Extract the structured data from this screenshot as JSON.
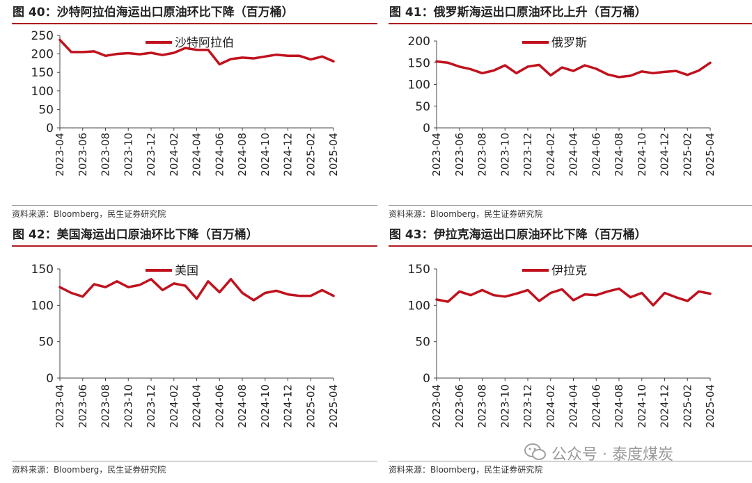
{
  "panels": [
    {
      "title": "图 40：沙特阿拉伯海运出口原油环比下降（百万桶）",
      "source": "资料来源：Bloomberg，民生证券研究院"
    },
    {
      "title": "图 41：俄罗斯海运出口原油环比上升（百万桶）",
      "source": "资料来源：Bloomberg，民生证券研究院"
    },
    {
      "title": "图 42：美国海运出口原油环比下降（百万桶）",
      "source": "资料来源：Bloomberg，民生证券研究院"
    },
    {
      "title": "图 43：伊拉克海运出口原油环比下降（百万桶）",
      "source": "资料来源：Bloomberg，民生证券研究院"
    }
  ],
  "watermark": "公众号 · 泰度煤炭",
  "chart_data": [
    {
      "type": "line",
      "x": [
        "2023-04",
        "2023-05",
        "2023-06",
        "2023-07",
        "2023-08",
        "2023-09",
        "2023-10",
        "2023-11",
        "2023-12",
        "2024-01",
        "2024-02",
        "2024-03",
        "2024-04",
        "2024-05",
        "2024-06",
        "2024-07",
        "2024-08",
        "2024-09",
        "2024-10",
        "2024-11",
        "2024-12",
        "2025-01",
        "2025-02",
        "2025-03",
        "2025-04"
      ],
      "tick_labels": [
        "2023-04",
        "2023-06",
        "2023-08",
        "2023-10",
        "2023-12",
        "2024-02",
        "2024-04",
        "2024-06",
        "2024-08",
        "2024-10",
        "2024-12",
        "2025-02",
        "2025-04"
      ],
      "series": [
        {
          "name": "沙特阿拉伯",
          "color": "#c0121e",
          "values": [
            238,
            205,
            205,
            207,
            195,
            200,
            202,
            199,
            203,
            197,
            203,
            216,
            211,
            211,
            172,
            186,
            190,
            188,
            193,
            198,
            195,
            195,
            185,
            193,
            180
          ]
        }
      ],
      "ylim": [
        0,
        250
      ],
      "yticks": [
        0,
        50,
        100,
        150,
        200,
        250
      ],
      "legend": "top-center",
      "grid": false
    },
    {
      "type": "line",
      "x": [
        "2023-04",
        "2023-05",
        "2023-06",
        "2023-07",
        "2023-08",
        "2023-09",
        "2023-10",
        "2023-11",
        "2023-12",
        "2024-01",
        "2024-02",
        "2024-03",
        "2024-04",
        "2024-05",
        "2024-06",
        "2024-07",
        "2024-08",
        "2024-09",
        "2024-10",
        "2024-11",
        "2024-12",
        "2025-01",
        "2025-02",
        "2025-03",
        "2025-04"
      ],
      "tick_labels": [
        "2023-04",
        "2023-06",
        "2023-08",
        "2023-10",
        "2023-12",
        "2024-02",
        "2024-04",
        "2024-06",
        "2024-08",
        "2024-10",
        "2024-12",
        "2025-02",
        "2025-04"
      ],
      "series": [
        {
          "name": "俄罗斯",
          "color": "#c0121e",
          "values": [
            153,
            150,
            141,
            135,
            126,
            132,
            144,
            126,
            141,
            145,
            121,
            139,
            131,
            144,
            136,
            123,
            117,
            120,
            130,
            126,
            129,
            131,
            122,
            132,
            150
          ]
        }
      ],
      "ylim": [
        0,
        200
      ],
      "yticks": [
        0,
        50,
        100,
        150,
        200
      ],
      "legend": "top-center",
      "grid": false
    },
    {
      "type": "line",
      "x": [
        "2023-04",
        "2023-05",
        "2023-06",
        "2023-07",
        "2023-08",
        "2023-09",
        "2023-10",
        "2023-11",
        "2023-12",
        "2024-01",
        "2024-02",
        "2024-03",
        "2024-04",
        "2024-05",
        "2024-06",
        "2024-07",
        "2024-08",
        "2024-09",
        "2024-10",
        "2024-11",
        "2024-12",
        "2025-01",
        "2025-02",
        "2025-03",
        "2025-04"
      ],
      "tick_labels": [
        "2023-04",
        "2023-06",
        "2023-08",
        "2023-10",
        "2023-12",
        "2024-02",
        "2024-04",
        "2024-06",
        "2024-08",
        "2024-10",
        "2024-12",
        "2025-02",
        "2025-04"
      ],
      "series": [
        {
          "name": "美国",
          "color": "#c0121e",
          "values": [
            125,
            117,
            112,
            129,
            125,
            133,
            125,
            128,
            136,
            121,
            130,
            127,
            109,
            133,
            118,
            136,
            117,
            107,
            117,
            120,
            115,
            113,
            113,
            121,
            113
          ]
        }
      ],
      "ylim": [
        0,
        150
      ],
      "yticks": [
        0,
        50,
        100,
        150
      ],
      "legend": "top-center",
      "grid": false
    },
    {
      "type": "line",
      "x": [
        "2023-04",
        "2023-05",
        "2023-06",
        "2023-07",
        "2023-08",
        "2023-09",
        "2023-10",
        "2023-11",
        "2023-12",
        "2024-01",
        "2024-02",
        "2024-03",
        "2024-04",
        "2024-05",
        "2024-06",
        "2024-07",
        "2024-08",
        "2024-09",
        "2024-10",
        "2024-11",
        "2024-12",
        "2025-01",
        "2025-02",
        "2025-03",
        "2025-04"
      ],
      "tick_labels": [
        "2023-04",
        "2023-06",
        "2023-08",
        "2023-10",
        "2023-12",
        "2024-02",
        "2024-04",
        "2024-06",
        "2024-08",
        "2024-10",
        "2024-12",
        "2025-02",
        "2025-04"
      ],
      "series": [
        {
          "name": "伊拉克",
          "color": "#c0121e",
          "values": [
            108,
            105,
            119,
            114,
            121,
            114,
            112,
            116,
            121,
            106,
            117,
            122,
            107,
            115,
            114,
            119,
            123,
            111,
            117,
            100,
            117,
            111,
            106,
            119,
            116
          ]
        }
      ],
      "ylim": [
        0,
        150
      ],
      "yticks": [
        0,
        50,
        100,
        150
      ],
      "legend": "top-center",
      "grid": false
    }
  ]
}
